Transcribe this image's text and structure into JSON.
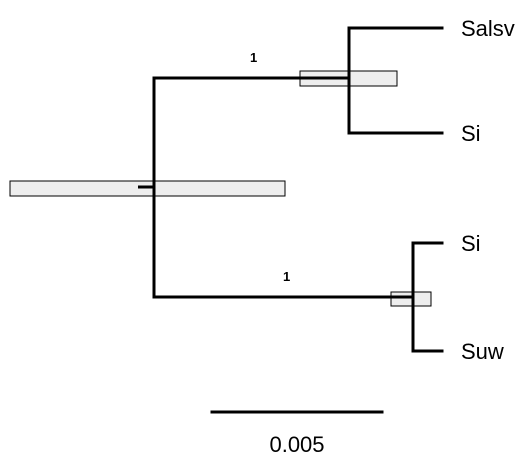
{
  "tree": {
    "tips": [
      {
        "id": "tip-1",
        "label": "Salsv"
      },
      {
        "id": "tip-2",
        "label": "Si"
      },
      {
        "id": "tip-3",
        "label": "Si"
      },
      {
        "id": "tip-4",
        "label": "Suw"
      }
    ],
    "support_values": [
      {
        "clade": "upper",
        "value": "1"
      },
      {
        "clade": "lower",
        "value": "1"
      }
    ],
    "scale_bar": {
      "length": 0.005,
      "label": "0.005"
    },
    "colors": {
      "branch": "#000000",
      "hpd_bar_fill": "#eeeeee",
      "background": "#ffffff"
    }
  }
}
